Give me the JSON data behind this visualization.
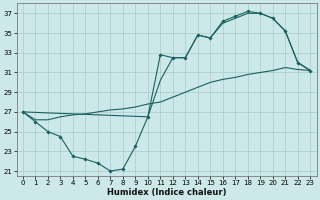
{
  "xlabel": "Humidex (Indice chaleur)",
  "bg_color": "#cce8e8",
  "grid_color": "#aacccc",
  "line_color": "#1a6060",
  "xlim": [
    -0.5,
    23.5
  ],
  "ylim": [
    20.5,
    38.0
  ],
  "xticks": [
    0,
    1,
    2,
    3,
    4,
    5,
    6,
    7,
    8,
    9,
    10,
    11,
    12,
    13,
    14,
    15,
    16,
    17,
    18,
    19,
    20,
    21,
    22,
    23
  ],
  "yticks": [
    21,
    23,
    25,
    27,
    29,
    31,
    33,
    35,
    37
  ],
  "series1_x": [
    0,
    1,
    2,
    3,
    4,
    5,
    6,
    7,
    8,
    9,
    10,
    11,
    12,
    13,
    14,
    15,
    16,
    17,
    18,
    19,
    20,
    21,
    22,
    23
  ],
  "series1_y": [
    27.0,
    26.0,
    25.0,
    24.5,
    22.5,
    22.2,
    21.8,
    21.0,
    21.2,
    23.5,
    26.5,
    32.8,
    32.5,
    32.5,
    34.8,
    34.5,
    36.2,
    36.7,
    37.2,
    37.0,
    36.5,
    35.2,
    32.0,
    31.2
  ],
  "series2_x": [
    0,
    1,
    2,
    3,
    4,
    5,
    6,
    7,
    8,
    9,
    10,
    11,
    12,
    13,
    14,
    15,
    16,
    17,
    18,
    19,
    20,
    21,
    22,
    23
  ],
  "series2_y": [
    27.0,
    26.2,
    26.2,
    26.5,
    26.7,
    26.8,
    27.0,
    27.2,
    27.3,
    27.5,
    27.8,
    28.0,
    28.5,
    29.0,
    29.5,
    30.0,
    30.3,
    30.5,
    30.8,
    31.0,
    31.2,
    31.5,
    31.3,
    31.2
  ],
  "series3_x": [
    0,
    10,
    11,
    12,
    13,
    14,
    15,
    16,
    17,
    18,
    19,
    20,
    21,
    22,
    23
  ],
  "series3_y": [
    27.0,
    26.5,
    30.2,
    32.5,
    32.5,
    34.8,
    34.5,
    36.0,
    36.5,
    37.0,
    37.0,
    36.5,
    35.2,
    32.0,
    31.2
  ]
}
